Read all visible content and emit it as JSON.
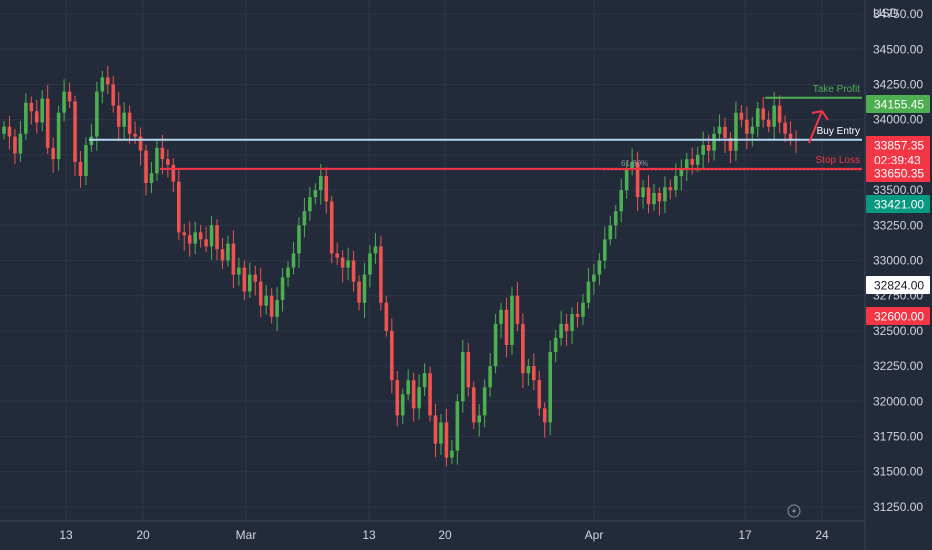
{
  "chart_data": {
    "type": "candlestick",
    "currency_label": "USD",
    "y_ticks": [
      "34750.00",
      "34500.00",
      "34250.00",
      "34000.00",
      "33750.00",
      "33500.00",
      "33250.00",
      "33000.00",
      "32750.00",
      "32500.00",
      "32250.00",
      "32000.00",
      "31750.00",
      "31500.00",
      "31250.00"
    ],
    "x_ticks": [
      "13",
      "20",
      "Mar",
      "13",
      "20",
      "Apr",
      "17",
      "24"
    ],
    "ylim": [
      31150,
      34850
    ],
    "price_tags": [
      {
        "label": "34155.45",
        "value": 34155.45,
        "bg": "#4caf50",
        "fg": "#ffffff"
      },
      {
        "label": "33857.35",
        "value": 33857.35,
        "bg": "#f23645",
        "fg": "#ffffff"
      },
      {
        "label": "02:39:43",
        "value": 33760,
        "bg": "#f23645",
        "fg": "#ffffff"
      },
      {
        "label": "33650.35",
        "value": 33650.35,
        "bg": "#f23645",
        "fg": "#ffffff"
      },
      {
        "label": "33421.00",
        "value": 33421.0,
        "bg": "#089981",
        "fg": "#ffffff"
      },
      {
        "label": "32824.00",
        "value": 32824.0,
        "bg": "#ffffff",
        "fg": "#131722"
      },
      {
        "label": "32600.00",
        "value": 32600.0,
        "bg": "#f23645",
        "fg": "#ffffff"
      }
    ],
    "levels": [
      {
        "name": "Take Profit",
        "value": 34155.45,
        "color": "#4caf50"
      },
      {
        "name": "Buy Entry",
        "value": 33857.35,
        "color": "#b2d7f0"
      },
      {
        "name": "Stop Loss",
        "value": 33650.35,
        "color": "#f23645"
      }
    ],
    "fib_label": "61.80%",
    "fib_level": 33650.35,
    "colors": {
      "up": "#26a69a",
      "up_green": "#4caf50",
      "down": "#ef5350",
      "bg": "#232b3b",
      "grid": "#2c3547",
      "text": "#d1d4dc"
    },
    "candles_close": [
      33950,
      33880,
      33760,
      33900,
      34120,
      34060,
      33980,
      34150,
      33800,
      33720,
      34050,
      34200,
      34130,
      33700,
      33600,
      33820,
      33880,
      34200,
      34300,
      34250,
      34100,
      33950,
      34050,
      33900,
      33880,
      33780,
      33550,
      33620,
      33800,
      33720,
      33680,
      33560,
      33200,
      33180,
      33120,
      33200,
      33150,
      33100,
      33250,
      33080,
      33000,
      33120,
      32900,
      32950,
      32780,
      32900,
      32850,
      32680,
      32750,
      32600,
      32720,
      32880,
      32950,
      33050,
      33250,
      33350,
      33450,
      33500,
      33600,
      33420,
      33050,
      33020,
      32950,
      33000,
      32850,
      32700,
      32900,
      33050,
      33100,
      32700,
      32500,
      32150,
      31900,
      32050,
      32150,
      31950,
      32100,
      32200,
      31900,
      31700,
      31850,
      31600,
      31650,
      32000,
      32350,
      32100,
      31850,
      31900,
      32100,
      32250,
      32550,
      32650,
      32400,
      32750,
      32550,
      32200,
      32250,
      32150,
      31950,
      31850,
      32350,
      32450,
      32550,
      32500,
      32620,
      32600,
      32700,
      32850,
      32900,
      33000,
      33150,
      33250,
      33350,
      33500,
      33650,
      33700,
      33450,
      33520,
      33400,
      33480,
      33420,
      33520,
      33500,
      33600,
      33650,
      33720,
      33680,
      33750,
      33820,
      33780,
      33900,
      33950,
      33870,
      33780,
      34050,
      34000,
      33900,
      33950,
      34080,
      34000,
      33950,
      34100,
      33980,
      33900,
      33860,
      33857
    ],
    "candles_open": [
      33900,
      33950,
      33880,
      33760,
      33900,
      34120,
      34060,
      33980,
      34150,
      33800,
      33720,
      34050,
      34200,
      34130,
      33700,
      33600,
      33820,
      33880,
      34200,
      34300,
      34250,
      34100,
      33950,
      34050,
      33900,
      33880,
      33780,
      33550,
      33620,
      33800,
      33720,
      33680,
      33560,
      33200,
      33180,
      33120,
      33200,
      33150,
      33100,
      33250,
      33080,
      33000,
      33120,
      32900,
      32950,
      32780,
      32900,
      32850,
      32680,
      32750,
      32600,
      32720,
      32880,
      32950,
      33050,
      33250,
      33350,
      33450,
      33500,
      33600,
      33420,
      33050,
      33020,
      32950,
      33000,
      32850,
      32700,
      32900,
      33050,
      33100,
      32700,
      32500,
      32150,
      31900,
      32050,
      32150,
      31950,
      32100,
      32200,
      31900,
      31700,
      31850,
      31600,
      31650,
      32000,
      32350,
      32100,
      31850,
      31900,
      32100,
      32250,
      32550,
      32650,
      32400,
      32750,
      32550,
      32200,
      32250,
      32150,
      31950,
      31850,
      32350,
      32450,
      32550,
      32500,
      32620,
      32600,
      32700,
      32850,
      32900,
      33000,
      33150,
      33250,
      33350,
      33500,
      33650,
      33700,
      33450,
      33520,
      33400,
      33480,
      33420,
      33520,
      33500,
      33600,
      33650,
      33720,
      33680,
      33750,
      33820,
      33780,
      33900,
      33950,
      33870,
      33780,
      34050,
      34000,
      33900,
      33950,
      34080,
      34000,
      33950,
      34100,
      33980,
      33900,
      33860
    ]
  }
}
